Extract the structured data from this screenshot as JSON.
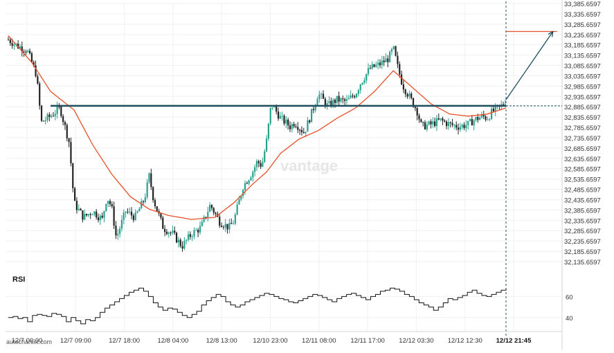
{
  "watermark": "vantage",
  "footer": {
    "source": "autochartist.com"
  },
  "rsi_panel": {
    "label": "RSI",
    "levels": [
      60,
      40
    ]
  },
  "colors": {
    "up_candle": "#25a18e",
    "down_candle": "#222222",
    "moving_average": "#e8502a",
    "resistance_line": "#1f4e5f",
    "forecast_arrow": "#1f4e5f",
    "target_line": "#e8502a",
    "grid": "#eef0f2",
    "rsi_line": "#111111"
  },
  "chart_data": [
    {
      "type": "candlestick",
      "title": "",
      "ylim": [
        32135.6597,
        33385.6597
      ],
      "y_ticks": [
        "33,385.6597",
        "33,335.6597",
        "33,285.6597",
        "33,235.6597",
        "33,185.6597",
        "33,135.6597",
        "33,085.6597",
        "33,035.6597",
        "32,985.6597",
        "32,935.6597",
        "32,885.6597",
        "32,835.6597",
        "32,785.6597",
        "32,735.6597",
        "32,685.6597",
        "32,635.6597",
        "32,585.6597",
        "32,535.6597",
        "32,485.6597",
        "32,435.6597",
        "32,385.6597",
        "32,335.6597",
        "32,285.6597",
        "32,235.6597",
        "32,185.6597",
        "32,135.6597"
      ],
      "x_ticks": [
        "12/7 00:00",
        "12/7 09:00",
        "12/7 18:00",
        "12/8 04:00",
        "12/8 13:00",
        "12/10 23:00",
        "12/11 08:00",
        "12/11 17:00",
        "12/12 03:30",
        "12/12 12:30",
        "12/12 21:45"
      ],
      "current_time_label": "12/12 21:45",
      "price_path": [
        [
          0,
          33210
        ],
        [
          2,
          33180
        ],
        [
          4,
          33160
        ],
        [
          6,
          33040
        ],
        [
          7,
          32810
        ],
        [
          9,
          32840
        ],
        [
          11,
          32880
        ],
        [
          13,
          32710
        ],
        [
          14,
          32420
        ],
        [
          16,
          32350
        ],
        [
          18,
          32380
        ],
        [
          20,
          32340
        ],
        [
          21,
          32450
        ],
        [
          22,
          32400
        ],
        [
          23,
          32250
        ],
        [
          25,
          32380
        ],
        [
          27,
          32350
        ],
        [
          29,
          32440
        ],
        [
          30,
          32550
        ],
        [
          31,
          32430
        ],
        [
          33,
          32300
        ],
        [
          35,
          32270
        ],
        [
          37,
          32210
        ],
        [
          39,
          32270
        ],
        [
          41,
          32300
        ],
        [
          43,
          32410
        ],
        [
          45,
          32330
        ],
        [
          47,
          32300
        ],
        [
          48,
          32330
        ],
        [
          50,
          32500
        ],
        [
          52,
          32570
        ],
        [
          53,
          32620
        ],
        [
          54,
          32600
        ],
        [
          55,
          32720
        ],
        [
          56,
          32900
        ],
        [
          58,
          32830
        ],
        [
          60,
          32790
        ],
        [
          61,
          32810
        ],
        [
          63,
          32760
        ],
        [
          65,
          32880
        ],
        [
          66,
          32950
        ],
        [
          68,
          32890
        ],
        [
          70,
          32920
        ],
        [
          72,
          32910
        ],
        [
          74,
          32950
        ],
        [
          75,
          33000
        ],
        [
          77,
          33070
        ],
        [
          79,
          33090
        ],
        [
          81,
          33120
        ],
        [
          82,
          33170
        ],
        [
          83,
          33070
        ],
        [
          84,
          32990
        ],
        [
          85,
          32950
        ],
        [
          87,
          32870
        ],
        [
          88,
          32790
        ],
        [
          90,
          32800
        ],
        [
          92,
          32820
        ],
        [
          94,
          32800
        ],
        [
          96,
          32790
        ],
        [
          98,
          32800
        ],
        [
          99,
          32820
        ],
        [
          101,
          32840
        ],
        [
          102,
          32830
        ],
        [
          103,
          32860
        ],
        [
          105,
          32890
        ],
        [
          106,
          32920
        ]
      ],
      "moving_average": [
        [
          0,
          33230
        ],
        [
          5,
          33100
        ],
        [
          9,
          32960
        ],
        [
          14,
          32870
        ],
        [
          18,
          32700
        ],
        [
          22,
          32560
        ],
        [
          26,
          32450
        ],
        [
          30,
          32390
        ],
        [
          34,
          32360
        ],
        [
          39,
          32340
        ],
        [
          44,
          32350
        ],
        [
          48,
          32420
        ],
        [
          52,
          32510
        ],
        [
          55,
          32570
        ],
        [
          58,
          32660
        ],
        [
          62,
          32730
        ],
        [
          66,
          32770
        ],
        [
          70,
          32830
        ],
        [
          74,
          32880
        ],
        [
          78,
          32960
        ],
        [
          82,
          33060
        ],
        [
          86,
          32980
        ],
        [
          90,
          32900
        ],
        [
          94,
          32850
        ],
        [
          98,
          32840
        ],
        [
          102,
          32850
        ],
        [
          106,
          32880
        ]
      ],
      "resistance_level": 32890,
      "resistance_start_index": 9,
      "target_level": 33250,
      "forecast_from": [
        106,
        32920
      ],
      "forecast_to_index": 116
    },
    {
      "type": "line",
      "name": "RSI",
      "ylim": [
        30,
        80
      ],
      "y_ticks": [
        60,
        40
      ],
      "values": [
        40,
        41,
        39,
        40,
        36,
        42,
        43,
        42,
        41,
        44,
        43,
        41,
        36,
        40,
        37,
        34,
        38,
        37,
        40,
        45,
        49,
        52,
        55,
        58,
        61,
        64,
        66,
        68,
        65,
        60,
        54,
        50,
        47,
        49,
        48,
        45,
        42,
        40,
        43,
        46,
        52,
        56,
        59,
        62,
        60,
        55,
        52,
        50,
        52,
        55,
        57,
        59,
        61,
        63,
        62,
        60,
        58,
        57,
        55,
        54,
        56,
        58,
        60,
        62,
        61,
        59,
        57,
        55,
        58,
        60,
        62,
        63,
        61,
        59,
        57,
        60,
        62,
        65,
        66,
        68,
        67,
        65,
        62,
        60,
        57,
        54,
        52,
        50,
        47,
        50,
        54,
        58,
        57,
        59,
        61,
        64,
        66,
        63,
        61,
        60,
        62,
        64,
        66,
        68
      ]
    }
  ]
}
